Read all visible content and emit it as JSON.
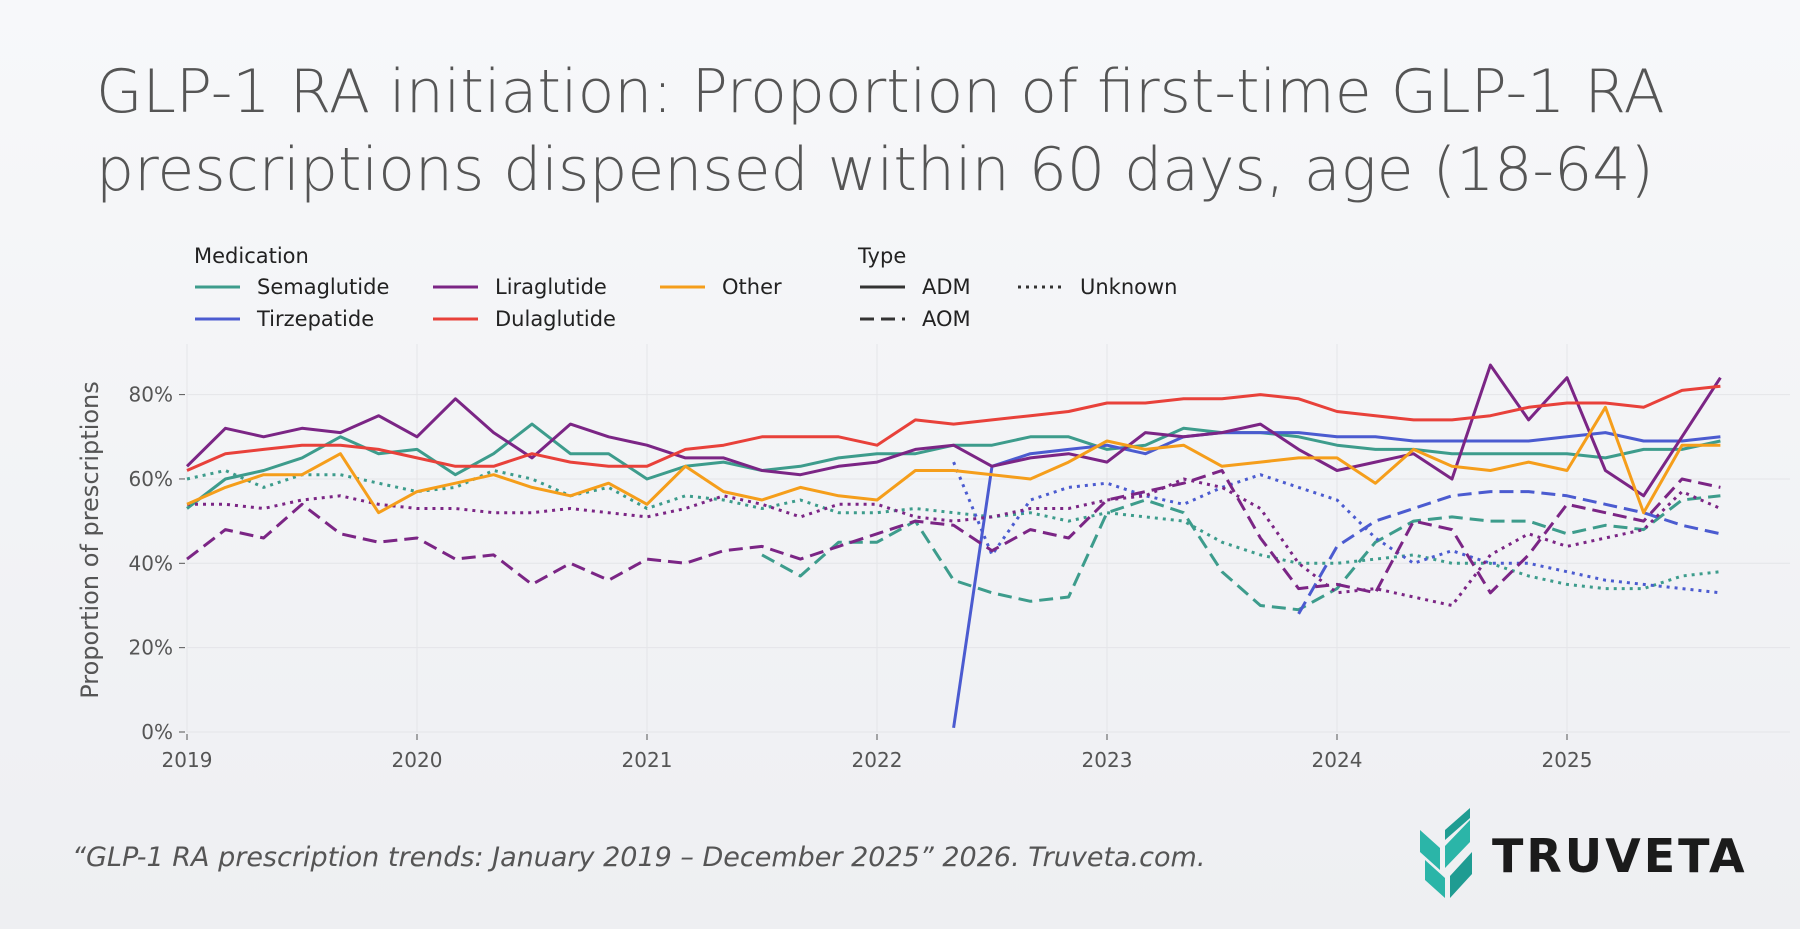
{
  "chart_data": {
    "type": "line",
    "title_lines": [
      "GLP-1 RA initiation: Proportion of first-time GLP-1 RA",
      "prescriptions dispensed within 60 days, age (18-64)"
    ],
    "ylabel": "Proportion of prescriptions",
    "legend_medication_title": "Medication",
    "legend_type_title": "Type",
    "types": [
      "ADM",
      "AOM",
      "Unknown"
    ],
    "x": [
      2019,
      2019.167,
      2019.333,
      2019.5,
      2019.667,
      2019.833,
      2020,
      2020.167,
      2020.333,
      2020.5,
      2020.667,
      2020.833,
      2021,
      2021.167,
      2021.333,
      2021.5,
      2021.667,
      2021.833,
      2022,
      2022.167,
      2022.333,
      2022.5,
      2022.667,
      2022.833,
      2023,
      2023.167,
      2023.333,
      2023.5,
      2023.667,
      2023.833,
      2024,
      2024.167,
      2024.333,
      2024.5,
      2024.667,
      2024.833,
      2025,
      2025.167,
      2025.333,
      2025.5,
      2025.667
    ],
    "xlim": [
      2019,
      2026
    ],
    "xticks": [
      2019,
      2020,
      2021,
      2022,
      2023,
      2024,
      2025
    ],
    "ylim": [
      0,
      92
    ],
    "yticks": [
      {
        "value": 0,
        "label": "0%"
      },
      {
        "value": 20,
        "label": "20%"
      },
      {
        "value": 40,
        "label": "40%"
      },
      {
        "value": 60,
        "label": "60%"
      },
      {
        "value": 80,
        "label": "80%"
      }
    ],
    "grid": true,
    "series": [
      {
        "name": "Semaglutide",
        "type": "ADM",
        "color": "#3d9c8c",
        "values": [
          53,
          60,
          62,
          65,
          70,
          66,
          67,
          61,
          66,
          73,
          66,
          66,
          60,
          63,
          64,
          62,
          63,
          65,
          66,
          66,
          68,
          68,
          70,
          70,
          67,
          68,
          72,
          71,
          71,
          70,
          68,
          67,
          67,
          66,
          66,
          66,
          66,
          65,
          67,
          67,
          69
        ]
      },
      {
        "name": "Semaglutide",
        "type": "AOM",
        "color": "#3d9c8c",
        "values": [
          null,
          null,
          null,
          null,
          null,
          null,
          null,
          null,
          null,
          null,
          null,
          null,
          null,
          null,
          null,
          42,
          37,
          45,
          45,
          50,
          36,
          33,
          31,
          32,
          52,
          55,
          52,
          38,
          30,
          29,
          34,
          45,
          50,
          51,
          50,
          50,
          47,
          49,
          48,
          55,
          56
        ]
      },
      {
        "name": "Semaglutide",
        "type": "Unknown",
        "color": "#3d9c8c",
        "values": [
          60,
          62,
          58,
          61,
          61,
          59,
          57,
          58,
          62,
          60,
          56,
          58,
          53,
          56,
          55,
          53,
          55,
          52,
          52,
          53,
          52,
          51,
          52,
          50,
          52,
          51,
          50,
          45,
          42,
          40,
          40,
          41,
          42,
          40,
          40,
          37,
          35,
          34,
          34,
          37,
          38
        ]
      },
      {
        "name": "Tirzepatide",
        "type": "ADM",
        "color": "#4b5bd0",
        "values": [
          null,
          null,
          null,
          null,
          null,
          null,
          null,
          null,
          null,
          null,
          null,
          null,
          null,
          null,
          null,
          null,
          null,
          null,
          null,
          null,
          1,
          63,
          66,
          67,
          68,
          66,
          70,
          71,
          71,
          71,
          70,
          70,
          69,
          69,
          69,
          69,
          70,
          71,
          69,
          69,
          70
        ]
      },
      {
        "name": "Tirzepatide",
        "type": "AOM",
        "color": "#4b5bd0",
        "values": [
          null,
          null,
          null,
          null,
          null,
          null,
          null,
          null,
          null,
          null,
          null,
          null,
          null,
          null,
          null,
          null,
          null,
          null,
          null,
          null,
          null,
          null,
          null,
          null,
          null,
          null,
          null,
          null,
          null,
          28,
          44,
          50,
          53,
          56,
          57,
          57,
          56,
          54,
          52,
          49,
          47
        ]
      },
      {
        "name": "Tirzepatide",
        "type": "Unknown",
        "color": "#4b5bd0",
        "values": [
          null,
          null,
          null,
          null,
          null,
          null,
          null,
          null,
          null,
          null,
          null,
          null,
          null,
          null,
          null,
          null,
          null,
          null,
          null,
          null,
          64,
          42,
          55,
          58,
          59,
          56,
          54,
          58,
          61,
          58,
          55,
          46,
          40,
          43,
          40,
          40,
          38,
          36,
          35,
          34,
          33
        ]
      },
      {
        "name": "Liraglutide",
        "type": "ADM",
        "color": "#7b2585",
        "values": [
          63,
          72,
          70,
          72,
          71,
          75,
          70,
          79,
          71,
          65,
          73,
          70,
          68,
          65,
          65,
          62,
          61,
          63,
          64,
          67,
          68,
          63,
          65,
          66,
          64,
          71,
          70,
          71,
          73,
          67,
          62,
          64,
          66,
          60,
          87,
          74,
          84,
          62,
          56,
          70,
          84
        ]
      },
      {
        "name": "Liraglutide",
        "type": "AOM",
        "color": "#7b2585",
        "values": [
          41,
          48,
          46,
          54,
          47,
          45,
          46,
          41,
          42,
          35,
          40,
          36,
          41,
          40,
          43,
          44,
          41,
          44,
          47,
          50,
          49,
          43,
          48,
          46,
          55,
          57,
          59,
          62,
          46,
          34,
          35,
          33,
          50,
          48,
          33,
          42,
          54,
          52,
          50,
          60,
          58
        ]
      },
      {
        "name": "Liraglutide",
        "type": "Unknown",
        "color": "#7b2585",
        "values": [
          54,
          54,
          53,
          55,
          56,
          54,
          53,
          53,
          52,
          52,
          53,
          52,
          51,
          53,
          56,
          54,
          51,
          54,
          54,
          51,
          50,
          51,
          53,
          53,
          55,
          56,
          60,
          58,
          53,
          40,
          33,
          34,
          32,
          30,
          42,
          47,
          44,
          46,
          48,
          57,
          53
        ]
      },
      {
        "name": "Dulaglutide",
        "type": "ADM",
        "color": "#e8413a",
        "values": [
          62,
          66,
          67,
          68,
          68,
          67,
          65,
          63,
          63,
          66,
          64,
          63,
          63,
          67,
          68,
          70,
          70,
          70,
          68,
          74,
          73,
          74,
          75,
          76,
          78,
          78,
          79,
          79,
          80,
          79,
          76,
          75,
          74,
          74,
          75,
          77,
          78,
          78,
          77,
          81,
          82
        ]
      },
      {
        "name": "Other",
        "type": "ADM",
        "color": "#f59e1b",
        "values": [
          54,
          58,
          61,
          61,
          66,
          52,
          57,
          59,
          61,
          58,
          56,
          59,
          54,
          63,
          57,
          55,
          58,
          56,
          55,
          62,
          62,
          61,
          60,
          64,
          69,
          67,
          68,
          63,
          64,
          65,
          65,
          59,
          67,
          63,
          62,
          64,
          62,
          77,
          52,
          68,
          68
        ]
      }
    ],
    "source": "“GLP-1 RA prescription trends: January 2019 – December 2025” 2026. Truveta.com.",
    "logo": "TRUVETA"
  }
}
